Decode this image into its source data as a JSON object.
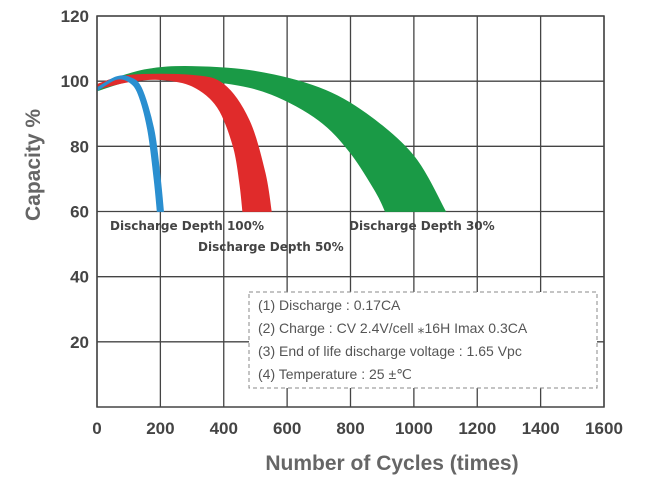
{
  "chart_data": {
    "type": "area",
    "xlabel": "Number of Cycles (times)",
    "ylabel": "Capacity %",
    "xlim": [
      0,
      1600
    ],
    "ylim": [
      0,
      120
    ],
    "x_ticks": [
      "0",
      "200",
      "400",
      "600",
      "800",
      "1000",
      "1200",
      "1400",
      "1600"
    ],
    "y_ticks": [
      "120",
      "100",
      "80",
      "60",
      "40",
      "20"
    ],
    "grid": true,
    "series": [
      {
        "name": "Discharge Depth 100%",
        "color": "#2a8fd0",
        "upper": [
          [
            0,
            98
          ],
          [
            60,
            101.3
          ],
          [
            100,
            101.3
          ],
          [
            140,
            98
          ],
          [
            180,
            85
          ],
          [
            200,
            70
          ],
          [
            210,
            60
          ]
        ],
        "lower": [
          [
            0,
            97
          ],
          [
            60,
            100.5
          ],
          [
            100,
            99.8
          ],
          [
            130,
            96
          ],
          [
            160,
            85
          ],
          [
            180,
            70
          ],
          [
            190,
            60
          ]
        ]
      },
      {
        "name": "Discharge Depth 50%",
        "color": "#e02b2b",
        "upper": [
          [
            0,
            99
          ],
          [
            100,
            101.8
          ],
          [
            300,
            101.8
          ],
          [
            400,
            99
          ],
          [
            480,
            88
          ],
          [
            530,
            72
          ],
          [
            550,
            60
          ]
        ],
        "lower": [
          [
            0,
            97.5
          ],
          [
            100,
            99.8
          ],
          [
            200,
            100.5
          ],
          [
            300,
            98.5
          ],
          [
            380,
            92
          ],
          [
            430,
            80
          ],
          [
            450,
            69
          ],
          [
            460,
            60
          ]
        ]
      },
      {
        "name": "Discharge Depth 30%",
        "color": "#1a9a46",
        "upper": [
          [
            0,
            99
          ],
          [
            150,
            103.5
          ],
          [
            300,
            104.5
          ],
          [
            500,
            103
          ],
          [
            700,
            98
          ],
          [
            850,
            90
          ],
          [
            1000,
            77
          ],
          [
            1100,
            60
          ]
        ],
        "lower": [
          [
            0,
            97
          ],
          [
            100,
            100
          ],
          [
            200,
            101
          ],
          [
            400,
            99.5
          ],
          [
            550,
            96
          ],
          [
            700,
            88
          ],
          [
            800,
            78
          ],
          [
            880,
            66
          ],
          [
            910,
            60
          ]
        ]
      }
    ],
    "curve_labels": [
      "Discharge Depth 100%",
      "Discharge Depth 50%",
      "Discharge Depth 30%"
    ],
    "notes": [
      "(1) Discharge : 0.17CA",
      "(2) Charge : CV 2.4V/cell ⁎16H Imax 0.3CA",
      "(3) End of life discharge voltage : 1.65 Vpc",
      "(4) Temperature : 25 ±℃"
    ]
  }
}
